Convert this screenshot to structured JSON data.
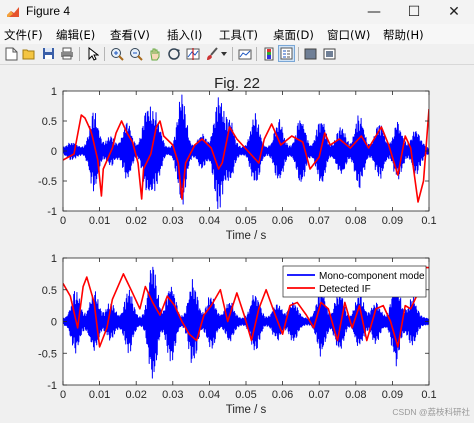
{
  "window": {
    "title": "Figure 4",
    "minimize_glyph": "—",
    "maximize_glyph": "☐",
    "close_glyph": "✕"
  },
  "menu": [
    "文件(F)",
    "编辑(E)",
    "查看(V)",
    "插入(I)",
    "工具(T)",
    "桌面(D)",
    "窗口(W)",
    "帮助(H)"
  ],
  "toolbar": {
    "icons": [
      "new-figure-icon",
      "open-file-icon",
      "save-icon",
      "print-icon",
      "pointer-icon",
      "zoom-in-icon",
      "zoom-out-icon",
      "pan-icon",
      "rotate-3d-icon",
      "data-cursor-icon",
      "brush-icon",
      "brush-dropdown-icon",
      "link-plot-icon",
      "insert-colorbar-icon",
      "insert-legend-icon",
      "hide-plot-tools-icon",
      "show-plot-tools-icon"
    ],
    "active": [
      "insert-legend-icon"
    ]
  },
  "figure": {
    "title": "Fig. 22",
    "watermark": "CSDN @荔枝科研社"
  },
  "colors": {
    "signal": "#0000ff",
    "if_line": "#ff0000",
    "axes_bg": "#ffffff",
    "figure_bg": "#f0f0f0"
  },
  "chart_data": [
    {
      "type": "line",
      "title": "Fig. 22",
      "xlabel": "Time / s",
      "ylabel": "",
      "xlim": [
        0,
        0.1
      ],
      "ylim": [
        -1,
        1
      ],
      "xticks": [
        "0",
        "0.01",
        "0.02",
        "0.03",
        "0.04",
        "0.05",
        "0.06",
        "0.07",
        "0.08",
        "0.09",
        "0.1"
      ],
      "yticks": [
        "-1",
        "-0.5",
        "0",
        "0.5",
        "1"
      ],
      "grid": false,
      "series": [
        {
          "color": "#0000ff",
          "note_kind": "oscillating signal",
          "bursts": [
            {
              "t": 0.0025,
              "amp": 0.1
            },
            {
              "t": 0.0085,
              "amp": 0.65
            },
            {
              "t": 0.013,
              "amp": 0.2
            },
            {
              "t": 0.0175,
              "amp": 0.45
            },
            {
              "t": 0.023,
              "amp": 0.7
            },
            {
              "t": 0.0255,
              "amp": 0.55
            },
            {
              "t": 0.0325,
              "amp": 0.95
            },
            {
              "t": 0.038,
              "amp": 0.25
            },
            {
              "t": 0.0425,
              "amp": 0.95
            },
            {
              "t": 0.0455,
              "amp": 0.5
            },
            {
              "t": 0.0525,
              "amp": 0.6
            },
            {
              "t": 0.059,
              "amp": 0.5
            },
            {
              "t": 0.065,
              "amp": 0.55
            },
            {
              "t": 0.0705,
              "amp": 0.55
            },
            {
              "t": 0.076,
              "amp": 0.4
            },
            {
              "t": 0.081,
              "amp": 0.6
            },
            {
              "t": 0.0865,
              "amp": 0.45
            },
            {
              "t": 0.0915,
              "amp": 0.45
            },
            {
              "t": 0.0965,
              "amp": 0.35
            }
          ],
          "y": []
        },
        {
          "color": "#ff0000",
          "x": [
            0,
            0.003,
            0.005,
            0.006,
            0.0075,
            0.008,
            0.0095,
            0.0105,
            0.011,
            0.0135,
            0.0145,
            0.016,
            0.0175,
            0.019,
            0.0205,
            0.0215,
            0.022,
            0.024,
            0.0255,
            0.0265,
            0.0275,
            0.03,
            0.0315,
            0.0325,
            0.0335,
            0.036,
            0.038,
            0.0405,
            0.0425,
            0.0435,
            0.0455,
            0.0475,
            0.0505,
            0.0535,
            0.055,
            0.057,
            0.0595,
            0.0625,
            0.0655,
            0.0675,
            0.07,
            0.0715,
            0.073,
            0.0755,
            0.0785,
            0.0815,
            0.0835,
            0.087,
            0.089,
            0.0915,
            0.0935,
            0.095,
            0.097,
            0.0985,
            0.1
          ],
          "y": [
            -0.15,
            -0.05,
            0.6,
            0.55,
            0.35,
            0.25,
            -0.15,
            -0.75,
            -0.3,
            0.05,
            0.3,
            0.5,
            0.3,
            0.15,
            -0.2,
            -0.8,
            -0.3,
            -0.05,
            0.4,
            0.5,
            0.25,
            0.1,
            -0.2,
            -0.8,
            -0.2,
            0.1,
            0.2,
            0.05,
            -0.3,
            -0.2,
            0.4,
            0.2,
            0.0,
            -0.2,
            0.2,
            0.45,
            0.1,
            0.25,
            0.15,
            -0.3,
            -0.1,
            0.3,
            0.1,
            0.2,
            0.05,
            0.25,
            0.05,
            0.4,
            0.1,
            -0.4,
            0.25,
            0.05,
            -0.85,
            -0.5,
            0.7
          ]
        }
      ]
    },
    {
      "type": "line",
      "title": "",
      "xlabel": "Time / s",
      "ylabel": "",
      "xlim": [
        0,
        0.1
      ],
      "ylim": [
        -1,
        1
      ],
      "xticks": [
        "0",
        "0.01",
        "0.02",
        "0.03",
        "0.04",
        "0.05",
        "0.06",
        "0.07",
        "0.08",
        "0.09",
        "0.1"
      ],
      "yticks": [
        "-1",
        "-0.5",
        "0",
        "0.5",
        "1"
      ],
      "grid": false,
      "legend": {
        "placement": "top-right",
        "entries": [
          "Mono-component mode",
          "Detected IF"
        ]
      },
      "series": [
        {
          "name": "Mono-component mode",
          "color": "#0000ff",
          "bursts": [
            {
              "t": 0.0035,
              "amp": 0.45
            },
            {
              "t": 0.0085,
              "amp": 0.45
            },
            {
              "t": 0.013,
              "amp": 0.25
            },
            {
              "t": 0.018,
              "amp": 0.45
            },
            {
              "t": 0.0245,
              "amp": 0.95
            },
            {
              "t": 0.0295,
              "amp": 0.6
            },
            {
              "t": 0.0355,
              "amp": 0.65
            },
            {
              "t": 0.0405,
              "amp": 0.4
            },
            {
              "t": 0.0455,
              "amp": 0.3
            },
            {
              "t": 0.0525,
              "amp": 0.45
            },
            {
              "t": 0.0585,
              "amp": 0.25
            },
            {
              "t": 0.063,
              "amp": 0.3
            },
            {
              "t": 0.0705,
              "amp": 0.5
            },
            {
              "t": 0.0755,
              "amp": 0.45
            },
            {
              "t": 0.081,
              "amp": 0.4
            },
            {
              "t": 0.0855,
              "amp": 0.3
            },
            {
              "t": 0.091,
              "amp": 0.65
            },
            {
              "t": 0.0955,
              "amp": 0.35
            }
          ],
          "y": []
        },
        {
          "name": "Detected IF",
          "color": "#ff0000",
          "x": [
            0,
            0.002,
            0.004,
            0.0055,
            0.0065,
            0.0085,
            0.01,
            0.012,
            0.0135,
            0.0165,
            0.019,
            0.021,
            0.0225,
            0.0245,
            0.0265,
            0.0285,
            0.0305,
            0.0325,
            0.0345,
            0.0365,
            0.0385,
            0.0405,
            0.043,
            0.045,
            0.0475,
            0.0495,
            0.0515,
            0.0535,
            0.0555,
            0.058,
            0.06,
            0.062,
            0.064,
            0.0665,
            0.0685,
            0.0705,
            0.0725,
            0.075,
            0.077,
            0.079,
            0.081,
            0.083,
            0.0855,
            0.0875,
            0.0895,
            0.0915,
            0.0935,
            0.095,
            0.097,
            0.0985,
            0.1
          ],
          "y": [
            0.6,
            0.4,
            -0.1,
            0.55,
            0.7,
            0.3,
            -0.4,
            -0.1,
            0.35,
            0.75,
            0.45,
            0.2,
            0.55,
            0.3,
            0.1,
            0.4,
            0.25,
            0.0,
            -0.2,
            -0.3,
            0.1,
            0.25,
            0.5,
            0.0,
            0.45,
            0.1,
            -0.3,
            0.2,
            0.5,
            0.1,
            -0.2,
            0.25,
            0.3,
            0.1,
            -0.1,
            0.3,
            0.2,
            -0.3,
            0.3,
            -0.1,
            0.25,
            -0.3,
            0.2,
            0.25,
            0.0,
            -0.4,
            0.25,
            0.2,
            0.45,
            0.85,
            0.85
          ]
        }
      ]
    }
  ]
}
